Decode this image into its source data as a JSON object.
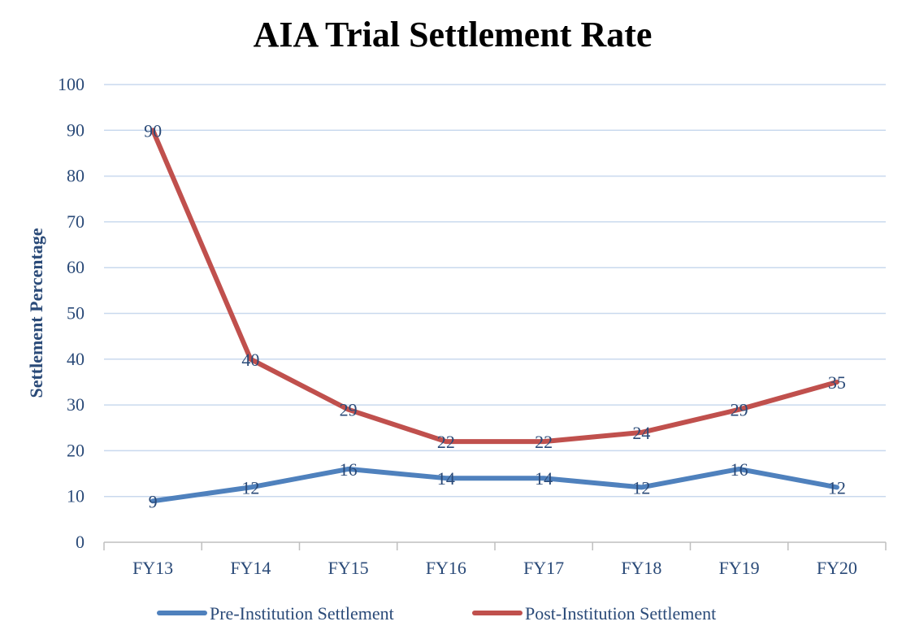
{
  "chart_data": {
    "type": "line",
    "title": "AIA Trial Settlement Rate",
    "xlabel": "",
    "ylabel": "Settlement Percentage",
    "categories": [
      "FY13",
      "FY14",
      "FY15",
      "FY16",
      "FY17",
      "FY18",
      "FY19",
      "FY20"
    ],
    "ylim": [
      0,
      100
    ],
    "yticks": [
      0,
      10,
      20,
      30,
      40,
      50,
      60,
      70,
      80,
      90,
      100
    ],
    "grid": true,
    "legend_position": "bottom",
    "series": [
      {
        "name": "Pre-Institution Settlement",
        "color": "#4f81bd",
        "values": [
          9,
          12,
          16,
          14,
          14,
          12,
          16,
          12
        ]
      },
      {
        "name": "Post-Institution Settlement",
        "color": "#c0504d",
        "values": [
          90,
          40,
          29,
          22,
          22,
          24,
          29,
          35
        ]
      }
    ],
    "gridColor": "#c9d9ee",
    "axisColor": "#bfbfbf"
  }
}
